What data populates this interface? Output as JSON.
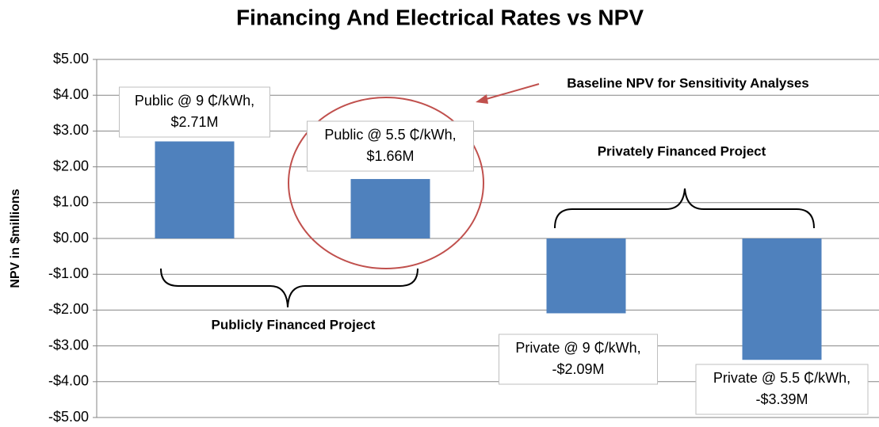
{
  "chart_data": {
    "type": "bar",
    "title": "Financing And Electrical Rates vs NPV",
    "y_label": "NPV in $millions",
    "categories": [
      null,
      null,
      null,
      null
    ],
    "values": [
      2.71,
      1.66,
      -2.09,
      -3.39
    ],
    "value_labels": [
      [
        "Public @ 9 ₵/kWh,",
        "$2.71M"
      ],
      [
        "Public @ 5.5 ₵/kWh,",
        "$1.66M"
      ],
      [
        "Private @ 9 ₵/kWh,",
        "-$2.09M"
      ],
      [
        "Private @ 5.5 ₵/kWh,",
        "-$3.39M"
      ]
    ],
    "color": "#4f81bd",
    "ylim": [
      -5,
      5
    ],
    "yticks": [
      {
        "value": -5,
        "label": "-$5.00"
      },
      {
        "value": -4,
        "label": "-$4.00"
      },
      {
        "value": -3,
        "label": "-$3.00"
      },
      {
        "value": -2,
        "label": "-$2.00"
      },
      {
        "value": -1,
        "label": "-$1.00"
      },
      {
        "value": 0,
        "label": "$0.00"
      },
      {
        "value": 1,
        "label": "$1.00"
      },
      {
        "value": 2,
        "label": "$2.00"
      },
      {
        "value": 3,
        "label": "$3.00"
      },
      {
        "value": 4,
        "label": "$4.00"
      },
      {
        "value": 5,
        "label": "$5.00"
      }
    ],
    "grid": true,
    "annotations": [
      "Baseline NPV for Sensitivity Analyses",
      "Privately Financed Project",
      "Publicly Financed Project"
    ]
  }
}
